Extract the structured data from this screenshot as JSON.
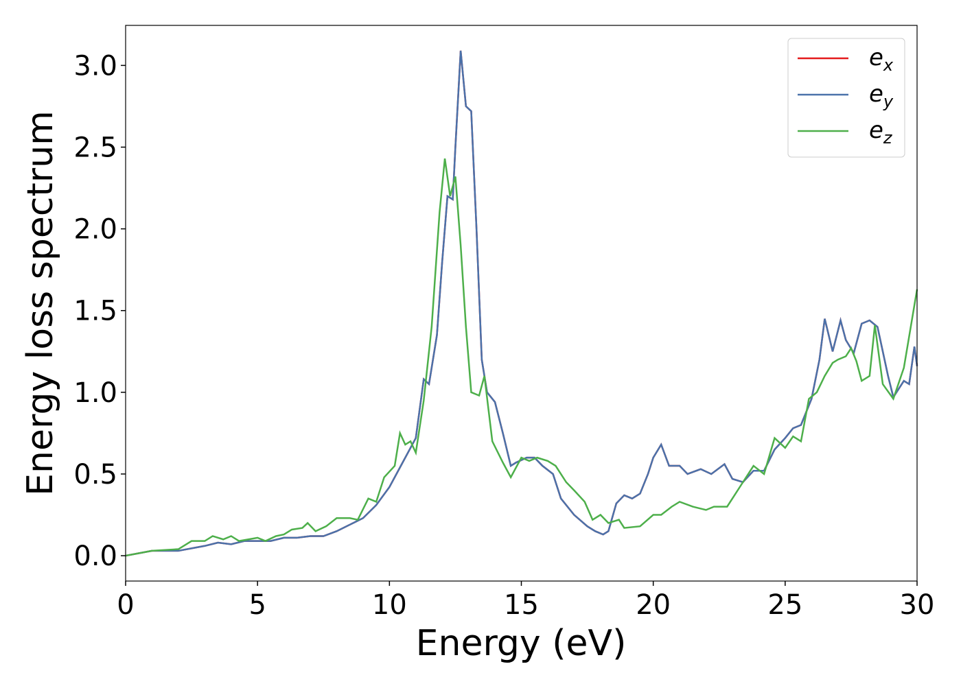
{
  "chart_data": {
    "type": "line",
    "xlabel": "Energy (eV)",
    "ylabel": "Energy loss spectrum",
    "xlim": [
      0,
      30
    ],
    "ylim": [
      -0.155,
      3.245
    ],
    "xticks": [
      0,
      5,
      10,
      15,
      20,
      25,
      30
    ],
    "yticks": [
      {
        "value": 0,
        "label": "0.0"
      },
      {
        "value": 0.5,
        "label": "0.5"
      },
      {
        "value": 1,
        "label": "1.0"
      },
      {
        "value": 1.5,
        "label": "1.5"
      },
      {
        "value": 2,
        "label": "2.0"
      },
      {
        "value": 2.5,
        "label": "2.5"
      },
      {
        "value": 3,
        "label": "3.0"
      }
    ],
    "legend": "upper right",
    "grid": false,
    "series": [
      {
        "name": "ex",
        "color": "#e41a1c",
        "x": [
          0,
          1,
          2,
          3,
          3.5,
          4,
          4.5,
          5,
          5.5,
          6,
          6.5,
          7,
          7.5,
          8,
          8.5,
          9,
          9.5,
          10,
          10.5,
          11,
          11.3,
          11.5,
          11.8,
          12,
          12.2,
          12.4,
          12.5,
          12.7,
          12.9,
          13.1,
          13.3,
          13.5,
          13.7,
          14,
          14.3,
          14.6,
          14.8,
          15.2,
          15.5,
          15.8,
          16.2,
          16.5,
          17,
          17.5,
          17.8,
          18.1,
          18.3,
          18.6,
          18.9,
          19.2,
          19.5,
          19.8,
          20,
          20.3,
          20.6,
          21,
          21.3,
          21.8,
          22.2,
          22.7,
          23,
          23.4,
          23.8,
          24.2,
          24.6,
          25,
          25.3,
          25.6,
          26,
          26.3,
          26.5,
          26.8,
          27.1,
          27.3,
          27.6,
          27.9,
          28.2,
          28.5,
          28.9,
          29.1,
          29.5,
          29.7,
          29.9,
          30
        ],
        "values": [
          0,
          0.03,
          0.03,
          0.06,
          0.08,
          0.07,
          0.09,
          0.09,
          0.09,
          0.11,
          0.11,
          0.12,
          0.12,
          0.15,
          0.19,
          0.23,
          0.31,
          0.42,
          0.57,
          0.72,
          1.08,
          1.05,
          1.35,
          1.8,
          2.2,
          2.18,
          2.5,
          3.09,
          2.75,
          2.72,
          2.0,
          1.2,
          1.0,
          0.94,
          0.75,
          0.55,
          0.57,
          0.6,
          0.6,
          0.55,
          0.5,
          0.35,
          0.25,
          0.18,
          0.15,
          0.13,
          0.15,
          0.32,
          0.37,
          0.35,
          0.38,
          0.5,
          0.6,
          0.68,
          0.55,
          0.55,
          0.5,
          0.53,
          0.5,
          0.56,
          0.47,
          0.45,
          0.52,
          0.52,
          0.65,
          0.72,
          0.78,
          0.8,
          0.96,
          1.2,
          1.45,
          1.25,
          1.44,
          1.32,
          1.24,
          1.42,
          1.44,
          1.4,
          1.1,
          0.97,
          1.07,
          1.05,
          1.28,
          1.16
        ]
      },
      {
        "name": "ey",
        "color": "#4a72aa",
        "x": [
          0,
          1,
          2,
          3,
          3.5,
          4,
          4.5,
          5,
          5.5,
          6,
          6.5,
          7,
          7.5,
          8,
          8.5,
          9,
          9.5,
          10,
          10.5,
          11,
          11.3,
          11.5,
          11.8,
          12,
          12.2,
          12.4,
          12.5,
          12.7,
          12.9,
          13.1,
          13.3,
          13.5,
          13.7,
          14,
          14.3,
          14.6,
          14.8,
          15.2,
          15.5,
          15.8,
          16.2,
          16.5,
          17,
          17.5,
          17.8,
          18.1,
          18.3,
          18.6,
          18.9,
          19.2,
          19.5,
          19.8,
          20,
          20.3,
          20.6,
          21,
          21.3,
          21.8,
          22.2,
          22.7,
          23,
          23.4,
          23.8,
          24.2,
          24.6,
          25,
          25.3,
          25.6,
          26,
          26.3,
          26.5,
          26.8,
          27.1,
          27.3,
          27.6,
          27.9,
          28.2,
          28.5,
          28.9,
          29.1,
          29.5,
          29.7,
          29.9,
          30
        ],
        "values": [
          0,
          0.03,
          0.03,
          0.06,
          0.08,
          0.07,
          0.09,
          0.09,
          0.09,
          0.11,
          0.11,
          0.12,
          0.12,
          0.15,
          0.19,
          0.23,
          0.31,
          0.42,
          0.57,
          0.72,
          1.08,
          1.05,
          1.35,
          1.8,
          2.2,
          2.18,
          2.5,
          3.09,
          2.75,
          2.72,
          2.0,
          1.2,
          1.0,
          0.94,
          0.75,
          0.55,
          0.57,
          0.6,
          0.6,
          0.55,
          0.5,
          0.35,
          0.25,
          0.18,
          0.15,
          0.13,
          0.15,
          0.32,
          0.37,
          0.35,
          0.38,
          0.5,
          0.6,
          0.68,
          0.55,
          0.55,
          0.5,
          0.53,
          0.5,
          0.56,
          0.47,
          0.45,
          0.52,
          0.52,
          0.65,
          0.72,
          0.78,
          0.8,
          0.96,
          1.2,
          1.45,
          1.25,
          1.44,
          1.32,
          1.24,
          1.42,
          1.44,
          1.4,
          1.1,
          0.97,
          1.07,
          1.05,
          1.28,
          1.16
        ]
      },
      {
        "name": "ez",
        "color": "#4daf4a",
        "x": [
          0,
          1,
          2,
          2.5,
          3,
          3.3,
          3.7,
          4,
          4.3,
          5,
          5.3,
          5.7,
          6,
          6.3,
          6.7,
          6.9,
          7.2,
          7.6,
          8,
          8.5,
          8.8,
          9.2,
          9.5,
          9.8,
          10.2,
          10.4,
          10.6,
          10.8,
          11,
          11.3,
          11.6,
          11.9,
          12.1,
          12.3,
          12.5,
          12.7,
          12.9,
          13.1,
          13.4,
          13.6,
          13.9,
          14.3,
          14.6,
          15,
          15.3,
          15.6,
          16,
          16.3,
          16.7,
          17,
          17.4,
          17.7,
          18,
          18.3,
          18.7,
          18.9,
          19.5,
          20,
          20.3,
          20.7,
          21,
          21.5,
          22,
          22.3,
          22.8,
          23,
          23.4,
          23.8,
          24.2,
          24.6,
          25,
          25.3,
          25.6,
          25.9,
          26.2,
          26.5,
          26.8,
          27,
          27.3,
          27.5,
          27.7,
          27.9,
          28.2,
          28.4,
          28.7,
          29.1,
          29.5,
          30
        ],
        "values": [
          0,
          0.03,
          0.04,
          0.09,
          0.09,
          0.12,
          0.1,
          0.12,
          0.09,
          0.11,
          0.09,
          0.12,
          0.13,
          0.16,
          0.17,
          0.2,
          0.15,
          0.18,
          0.23,
          0.23,
          0.22,
          0.35,
          0.33,
          0.48,
          0.55,
          0.75,
          0.68,
          0.7,
          0.63,
          0.95,
          1.4,
          2.1,
          2.43,
          2.2,
          2.32,
          1.9,
          1.4,
          1.0,
          0.98,
          1.1,
          0.7,
          0.57,
          0.48,
          0.6,
          0.58,
          0.6,
          0.58,
          0.55,
          0.45,
          0.4,
          0.33,
          0.22,
          0.25,
          0.2,
          0.22,
          0.17,
          0.18,
          0.25,
          0.25,
          0.3,
          0.33,
          0.3,
          0.28,
          0.3,
          0.3,
          0.35,
          0.45,
          0.55,
          0.5,
          0.72,
          0.66,
          0.73,
          0.7,
          0.96,
          1.0,
          1.1,
          1.18,
          1.2,
          1.22,
          1.27,
          1.19,
          1.07,
          1.1,
          1.41,
          1.05,
          0.96,
          1.15,
          1.63
        ]
      }
    ]
  }
}
